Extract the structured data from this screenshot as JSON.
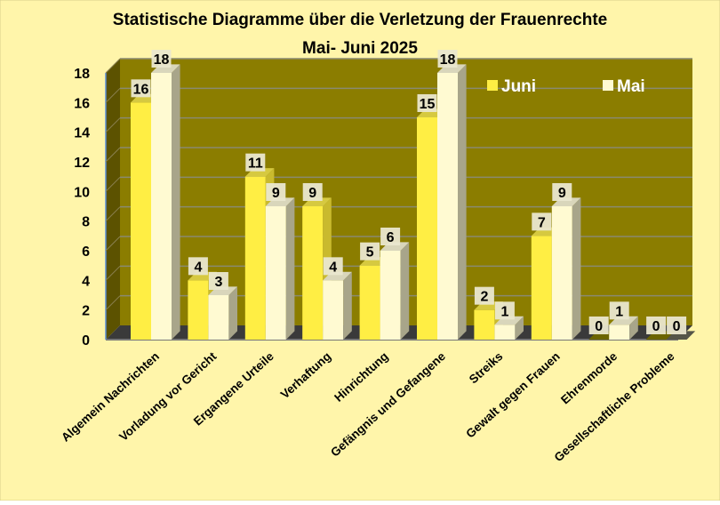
{
  "chart_data": {
    "type": "bar",
    "title": "Statistische Diagramme über die Verletzung der Frauenrechte",
    "subtitle": "Mai- Juni 2025",
    "xlabel": "",
    "ylabel": "",
    "ylim": [
      0,
      18
    ],
    "yticks": [
      0,
      2,
      4,
      6,
      8,
      10,
      12,
      14,
      16,
      18
    ],
    "grid": true,
    "legend_position": "top-right",
    "categories": [
      "Algemein Nachrichten",
      "Vorladung vor Gericht",
      "Ergangene Urteile",
      "Verhaftung",
      "Hinrichtung",
      "Gefängnis und Gefangene",
      "Streiks",
      "Gewalt gegen Frauen",
      "Ehrenmorde",
      "Gesellschaftliche Probleme"
    ],
    "series": [
      {
        "name": "Juni",
        "color": "#FFEE44",
        "values": [
          16,
          4,
          11,
          9,
          5,
          15,
          2,
          7,
          0,
          0
        ]
      },
      {
        "name": "Mai",
        "color": "#FFFAD2",
        "values": [
          18,
          3,
          9,
          4,
          6,
          18,
          1,
          9,
          1,
          0
        ]
      }
    ]
  },
  "colors": {
    "background": "#FFF5AA",
    "plot_wall": "#8B7D00",
    "side_wall": "#5C5200",
    "floor": "#3A3A3A",
    "gridline": "#8A8A70"
  }
}
